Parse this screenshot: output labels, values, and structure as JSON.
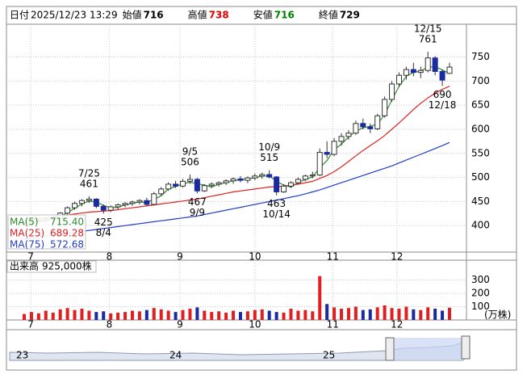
{
  "header": [
    {
      "label": "日付",
      "value": "2025/12/23 13:29",
      "color": "#000000"
    },
    {
      "label": "始値",
      "value": 716,
      "color": "#000000"
    },
    {
      "label": "高値",
      "value": 738,
      "color": "#e00000"
    },
    {
      "label": "安値",
      "value": 716,
      "color": "#008000"
    },
    {
      "label": "終値",
      "value": 729,
      "color": "#000000"
    }
  ],
  "chart_data": {
    "type": "candlestick",
    "ylim": [
      345,
      818
    ],
    "yticks": [
      400,
      450,
      500,
      550,
      600,
      650,
      700,
      750
    ],
    "grid": true,
    "up_color": "#ffffff",
    "down_color": "#1a2aa0",
    "xticks": [
      {
        "value": 0.9,
        "label": "7"
      },
      {
        "value": 11.8,
        "label": "8"
      },
      {
        "value": 21.6,
        "label": "9"
      },
      {
        "value": 32,
        "label": "10"
      },
      {
        "value": 42.8,
        "label": "11"
      },
      {
        "value": 51.7,
        "label": "12"
      }
    ],
    "candles": [
      [
        402,
        408,
        398,
        405
      ],
      [
        405,
        412,
        400,
        409
      ],
      [
        409,
        415,
        404,
        411
      ],
      [
        411,
        418,
        407,
        414
      ],
      [
        414,
        420,
        410,
        417
      ],
      [
        417,
        428,
        414,
        426
      ],
      [
        426,
        440,
        423,
        437
      ],
      [
        437,
        450,
        433,
        446
      ],
      [
        446,
        455,
        440,
        452
      ],
      [
        452,
        461,
        447,
        455
      ],
      [
        455,
        457,
        436,
        440
      ],
      [
        440,
        444,
        425,
        432
      ],
      [
        432,
        442,
        428,
        439
      ],
      [
        439,
        446,
        434,
        443
      ],
      [
        443,
        449,
        438,
        446
      ],
      [
        446,
        452,
        441,
        449
      ],
      [
        449,
        455,
        444,
        452
      ],
      [
        452,
        458,
        440,
        444
      ],
      [
        444,
        470,
        442,
        466
      ],
      [
        466,
        480,
        462,
        476
      ],
      [
        476,
        490,
        472,
        486
      ],
      [
        486,
        493,
        478,
        482
      ],
      [
        482,
        497,
        479,
        492
      ],
      [
        492,
        506,
        487,
        496
      ],
      [
        496,
        499,
        467,
        472
      ],
      [
        472,
        486,
        470,
        483
      ],
      [
        483,
        490,
        478,
        486
      ],
      [
        486,
        492,
        481,
        489
      ],
      [
        489,
        496,
        484,
        493
      ],
      [
        493,
        500,
        487,
        497
      ],
      [
        497,
        503,
        490,
        494
      ],
      [
        494,
        502,
        488,
        499
      ],
      [
        499,
        508,
        494,
        503
      ],
      [
        503,
        510,
        497,
        506
      ],
      [
        506,
        515,
        498,
        501
      ],
      [
        501,
        503,
        463,
        470
      ],
      [
        470,
        486,
        468,
        482
      ],
      [
        482,
        492,
        478,
        489
      ],
      [
        489,
        500,
        485,
        496
      ],
      [
        496,
        506,
        492,
        503
      ],
      [
        503,
        512,
        498,
        505
      ],
      [
        505,
        560,
        503,
        552
      ],
      [
        552,
        575,
        540,
        548
      ],
      [
        548,
        582,
        544,
        575
      ],
      [
        575,
        592,
        566,
        585
      ],
      [
        585,
        598,
        578,
        592
      ],
      [
        592,
        618,
        588,
        612
      ],
      [
        612,
        622,
        600,
        605
      ],
      [
        605,
        612,
        592,
        601
      ],
      [
        601,
        632,
        598,
        628
      ],
      [
        628,
        668,
        624,
        662
      ],
      [
        662,
        700,
        657,
        694
      ],
      [
        694,
        718,
        688,
        712
      ],
      [
        712,
        730,
        703,
        724
      ],
      [
        724,
        738,
        710,
        718
      ],
      [
        718,
        730,
        706,
        722
      ],
      [
        722,
        761,
        718,
        748
      ],
      [
        748,
        752,
        712,
        720
      ],
      [
        720,
        724,
        690,
        702
      ],
      [
        716,
        738,
        716,
        729
      ]
    ],
    "series": [
      {
        "name": "MA(5)",
        "color": "#2e8b2e",
        "values": [
          403,
          406,
          408,
          411,
          414,
          419,
          427,
          436,
          445,
          451,
          449,
          442,
          437,
          438,
          443,
          446,
          449,
          448,
          454,
          462,
          476,
          481,
          487,
          490,
          487,
          484,
          480,
          486,
          489,
          493,
          495,
          497,
          499,
          503,
          503,
          492,
          484,
          480,
          489,
          496,
          501,
          520,
          535,
          558,
          569,
          584,
          596,
          603,
          606,
          611,
          630,
          661,
          689,
          710,
          718,
          721,
          729,
          730,
          723,
          715.4
        ],
        "value_labels": [
          null,
          null,
          null,
          null,
          null,
          null,
          null,
          null,
          null,
          null,
          null,
          null,
          null,
          null,
          null,
          null,
          null,
          null,
          null,
          null,
          null,
          null,
          null,
          null,
          null,
          null,
          null,
          null,
          null,
          null,
          null,
          null,
          null,
          null,
          null,
          null,
          null,
          null,
          null,
          null,
          null,
          null,
          null,
          null,
          null,
          null,
          null,
          null,
          null,
          null,
          null,
          null,
          null,
          null,
          null,
          null,
          null,
          null,
          null,
          "715.40"
        ]
      },
      {
        "name": "MA(25)",
        "color": "#e02020",
        "values": [
          410,
          412,
          414,
          416,
          418,
          420,
          422,
          424,
          426,
          428,
          429,
          430,
          431,
          433,
          435,
          437,
          439,
          441,
          443,
          445,
          447,
          449,
          451,
          453,
          455,
          458,
          461,
          464,
          467,
          470,
          472,
          474,
          476,
          478,
          480,
          481,
          482,
          484,
          486,
          489,
          492,
          498,
          504,
          512,
          522,
          533,
          545,
          556,
          566,
          576,
          587,
          600,
          613,
          627,
          641,
          654,
          665,
          675,
          683,
          689.28
        ]
      },
      {
        "name": "MA(75)",
        "color": "#1f3cc8",
        "values": [
          372,
          374,
          376,
          378,
          380,
          382,
          384,
          386,
          388,
          390,
          392,
          394,
          396,
          398,
          400,
          402,
          404,
          406,
          408,
          410,
          412,
          414,
          416,
          418,
          420,
          423,
          426,
          429,
          432,
          435,
          438,
          441,
          444,
          447,
          450,
          453,
          456,
          459,
          462,
          466,
          470,
          474,
          479,
          484,
          489,
          494,
          499,
          504,
          509,
          514,
          519,
          524,
          530,
          536,
          542,
          548,
          554,
          560,
          566,
          572.68
        ]
      }
    ],
    "annotations": [
      {
        "date": "7/25",
        "value": 461
      },
      {
        "date": "8/4",
        "value": 425
      },
      {
        "date": "9/5",
        "value": 506
      },
      {
        "date": "9/9",
        "value": 467
      },
      {
        "date": "10/9",
        "value": 515
      },
      {
        "date": "10/14",
        "value": 463
      },
      {
        "date": "12/15",
        "value": 761
      },
      {
        "date": "12/18",
        "value": 690
      }
    ],
    "volume": {
      "title": "出来高",
      "unit": "(万株)",
      "ylim": [
        0,
        450
      ],
      "yticks": [
        100,
        200,
        300
      ],
      "values": [
        45,
        60,
        50,
        70,
        55,
        80,
        90,
        75,
        85,
        70,
        60,
        65,
        50,
        55,
        60,
        70,
        65,
        75,
        90,
        80,
        70,
        60,
        75,
        85,
        95,
        70,
        60,
        65,
        55,
        70,
        60,
        65,
        75,
        80,
        70,
        60,
        55,
        85,
        70,
        75,
        65,
        330,
        120,
        95,
        85,
        90,
        100,
        75,
        80,
        95,
        110,
        90,
        85,
        100,
        80,
        75,
        95,
        85,
        70,
        92.5
      ],
      "value_labels": [
        null,
        null,
        null,
        null,
        null,
        null,
        null,
        null,
        null,
        null,
        null,
        null,
        null,
        null,
        null,
        null,
        null,
        null,
        null,
        null,
        null,
        null,
        null,
        null,
        null,
        null,
        null,
        null,
        null,
        null,
        null,
        null,
        null,
        null,
        null,
        null,
        null,
        null,
        null,
        null,
        null,
        null,
        null,
        null,
        null,
        null,
        null,
        null,
        null,
        null,
        null,
        null,
        null,
        null,
        null,
        null,
        null,
        null,
        null,
        "925,000株"
      ]
    }
  },
  "navigator": {
    "labels": [
      "23",
      "24",
      "25"
    ]
  }
}
